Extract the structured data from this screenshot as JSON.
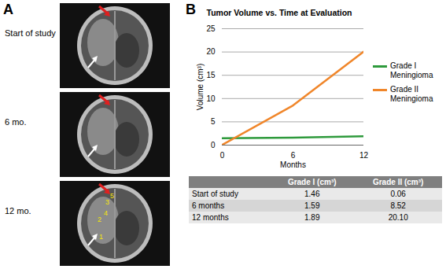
{
  "panel_labels": [
    "A",
    "B"
  ],
  "images": {
    "captions": [
      "Start of study",
      "6 mo.",
      "12 mo."
    ],
    "annotations": [
      "1",
      "2",
      "3",
      "4",
      "5"
    ]
  },
  "chart_data": {
    "type": "line",
    "title": "Tumor Volume vs. Time at Evaluation",
    "x_label": "Months",
    "y_label": "Volume (cm³)",
    "x": [
      0,
      6,
      12
    ],
    "series": [
      {
        "name": "Grade I Meningioma",
        "color": "#2e9a3c",
        "values": [
          1.46,
          1.59,
          1.89
        ]
      },
      {
        "name": "Grade II Meningioma",
        "color": "#f0862a",
        "values": [
          0.06,
          8.52,
          20.1
        ]
      }
    ],
    "xlim": [
      0,
      12
    ],
    "xticks": [
      0,
      6,
      12
    ],
    "ylim": [
      0,
      25
    ],
    "yticks": [
      0,
      5,
      10,
      15,
      20,
      25
    ],
    "grid": true,
    "legend": "right"
  },
  "table": {
    "columns": [
      "Grade I (cm³)",
      "Grade II (cm³)"
    ],
    "rows": [
      {
        "label": "Start of study",
        "cells": [
          "1.46",
          "0.06"
        ]
      },
      {
        "label": "6 months",
        "cells": [
          "1.59",
          "8.52"
        ]
      },
      {
        "label": "12 months",
        "cells": [
          "1.89",
          "20.10"
        ]
      }
    ]
  }
}
